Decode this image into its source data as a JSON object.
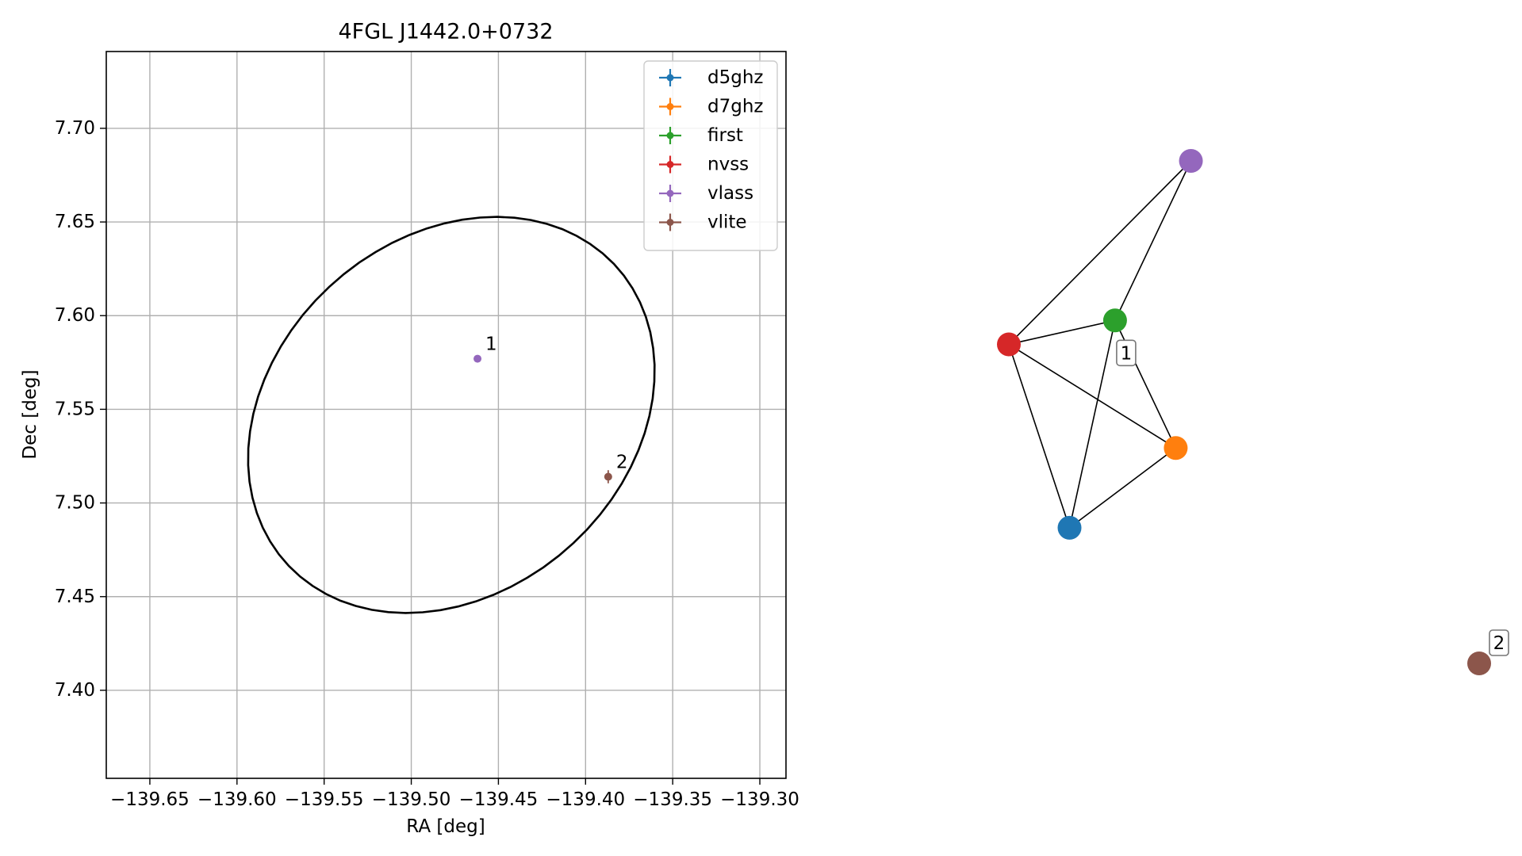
{
  "colors": {
    "d5ghz": "#1f77b4",
    "d7ghz": "#ff7f0e",
    "first": "#2ca02c",
    "nvss": "#d62728",
    "vlass": "#9467bd",
    "vlite": "#8c564b",
    "ellipse": "#000000",
    "grid": "#b0b0b0"
  },
  "chart_data": [
    {
      "type": "scatter",
      "title": "4FGL J1442.0+0732",
      "xlabel": "RA [deg]",
      "ylabel": "Dec [deg]",
      "xlim": [
        -139.675,
        -139.285
      ],
      "ylim": [
        7.353,
        7.741
      ],
      "grid": true,
      "legend_position": "top-right",
      "xticks": [
        -139.65,
        -139.6,
        -139.55,
        -139.5,
        -139.45,
        -139.4,
        -139.35,
        -139.3
      ],
      "xtick_labels": [
        "−139.65",
        "−139.60",
        "−139.55",
        "−139.50",
        "−139.45",
        "−139.40",
        "−139.35",
        "−139.30"
      ],
      "yticks": [
        7.4,
        7.45,
        7.5,
        7.55,
        7.6,
        7.65,
        7.7
      ],
      "ytick_labels": [
        "7.40",
        "7.45",
        "7.50",
        "7.55",
        "7.60",
        "7.65",
        "7.70"
      ],
      "series": [
        {
          "name": "d5ghz",
          "color": "#1f77b4",
          "points": []
        },
        {
          "name": "d7ghz",
          "color": "#ff7f0e",
          "points": []
        },
        {
          "name": "first",
          "color": "#2ca02c",
          "points": []
        },
        {
          "name": "nvss",
          "color": "#d62728",
          "points": []
        },
        {
          "name": "vlass",
          "color": "#9467bd",
          "points": [
            {
              "x": -139.462,
              "y": 7.577,
              "xerr": 0.0005,
              "yerr": 0.0005
            }
          ]
        },
        {
          "name": "vlite",
          "color": "#8c564b",
          "points": [
            {
              "x": -139.387,
              "y": 7.514,
              "xerr": 0.001,
              "yerr": 0.0035
            }
          ]
        }
      ],
      "annotations": [
        {
          "text": "1",
          "x": -139.462,
          "y": 7.577
        },
        {
          "text": "2",
          "x": -139.387,
          "y": 7.514
        }
      ],
      "ellipse": {
        "center": [
          -139.477,
          7.547
        ],
        "semi_major": 0.124,
        "semi_minor": 0.097,
        "angle_deg": 33
      }
    },
    {
      "type": "network",
      "nodes": [
        {
          "id": "vlass",
          "color": "#9467bd",
          "x": 0.6,
          "y": 4.35
        },
        {
          "id": "first",
          "color": "#2ca02c",
          "x": 0.35,
          "y": 3.35
        },
        {
          "id": "nvss",
          "color": "#d62728",
          "x": 0.0,
          "y": 3.2
        },
        {
          "id": "d7ghz",
          "color": "#ff7f0e",
          "x": 0.55,
          "y": 2.55
        },
        {
          "id": "d5ghz",
          "color": "#1f77b4",
          "x": 0.2,
          "y": 2.05
        },
        {
          "id": "vlite",
          "color": "#8c564b",
          "x": 1.55,
          "y": 1.2
        }
      ],
      "edges": [
        [
          "nvss",
          "vlass"
        ],
        [
          "first",
          "vlass"
        ],
        [
          "nvss",
          "first"
        ],
        [
          "nvss",
          "d7ghz"
        ],
        [
          "nvss",
          "d5ghz"
        ],
        [
          "first",
          "d5ghz"
        ],
        [
          "first",
          "d7ghz"
        ],
        [
          "d5ghz",
          "d7ghz"
        ]
      ],
      "labels": [
        {
          "text": "1",
          "node": "first"
        },
        {
          "text": "2",
          "node": "vlite"
        }
      ]
    }
  ]
}
